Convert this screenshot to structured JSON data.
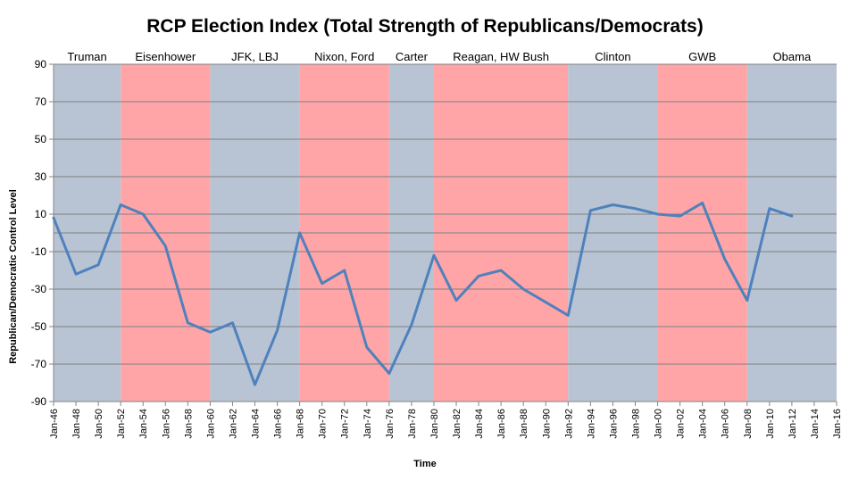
{
  "chart_data": {
    "type": "line",
    "title": "RCP Election Index (Total Strength of Republicans/Democrats)",
    "xlabel": "Time",
    "ylabel": "Republican/Democratic  Control Level",
    "ylim": [
      -90,
      90
    ],
    "yticks": [
      90,
      70,
      50,
      30,
      10,
      -10,
      -30,
      -50,
      -70,
      -90
    ],
    "grid": true,
    "xlim_years": [
      1946,
      2016
    ],
    "xtick_labels": [
      "Jan-46",
      "Jan-48",
      "Jan-50",
      "Jan-52",
      "Jan-54",
      "Jan-56",
      "Jan-58",
      "Jan-60",
      "Jan-62",
      "Jan-64",
      "Jan-66",
      "Jan-68",
      "Jan-70",
      "Jan-72",
      "Jan-74",
      "Jan-76",
      "Jan-78",
      "Jan-80",
      "Jan-82",
      "Jan-84",
      "Jan-86",
      "Jan-88",
      "Jan-90",
      "Jan-92",
      "Jan-94",
      "Jan-96",
      "Jan-98",
      "Jan-00",
      "Jan-02",
      "Jan-04",
      "Jan-06",
      "Jan-08",
      "Jan-10",
      "Jan-12",
      "Jan-14",
      "Jan-16"
    ],
    "bands": [
      {
        "label": "Truman",
        "start": 1946,
        "end": 1952,
        "party": "D"
      },
      {
        "label": "Eisenhower",
        "start": 1952,
        "end": 1960,
        "party": "R"
      },
      {
        "label": "JFK, LBJ",
        "start": 1960,
        "end": 1968,
        "party": "D"
      },
      {
        "label": "Nixon, Ford",
        "start": 1968,
        "end": 1976,
        "party": "R"
      },
      {
        "label": "Carter",
        "start": 1976,
        "end": 1980,
        "party": "D"
      },
      {
        "label": "Reagan, HW Bush",
        "start": 1980,
        "end": 1992,
        "party": "R"
      },
      {
        "label": "Clinton",
        "start": 1992,
        "end": 2000,
        "party": "D"
      },
      {
        "label": "GWB",
        "start": 2000,
        "end": 2008,
        "party": "R"
      },
      {
        "label": "Obama",
        "start": 2008,
        "end": 2016,
        "party": "D"
      }
    ],
    "series": [
      {
        "x": [
          1946,
          1948,
          1950,
          1952,
          1954,
          1956,
          1958,
          1960,
          1962,
          1964,
          1966,
          1968,
          1970,
          1972,
          1974,
          1976,
          1978,
          1980,
          1982,
          1984,
          1986,
          1988,
          1990,
          1992,
          1994,
          1996,
          1998,
          2000,
          2002,
          2004,
          2006,
          2008,
          2010,
          2012
        ],
        "values": [
          8,
          -22,
          -17,
          15,
          10,
          -7,
          -48,
          -53,
          -48,
          -81,
          -52,
          0,
          -27,
          -20,
          -61,
          -75,
          -49,
          -12,
          -36,
          -23,
          -20,
          -30,
          -37,
          -44,
          12,
          15,
          13,
          10,
          9,
          16,
          -14,
          -36,
          13,
          9
        ]
      }
    ],
    "colors": {
      "D": "#b8c4d3",
      "R": "#ffa5a7",
      "line": "#4f81bd",
      "grid": "#808080",
      "axis": "#868686"
    }
  }
}
